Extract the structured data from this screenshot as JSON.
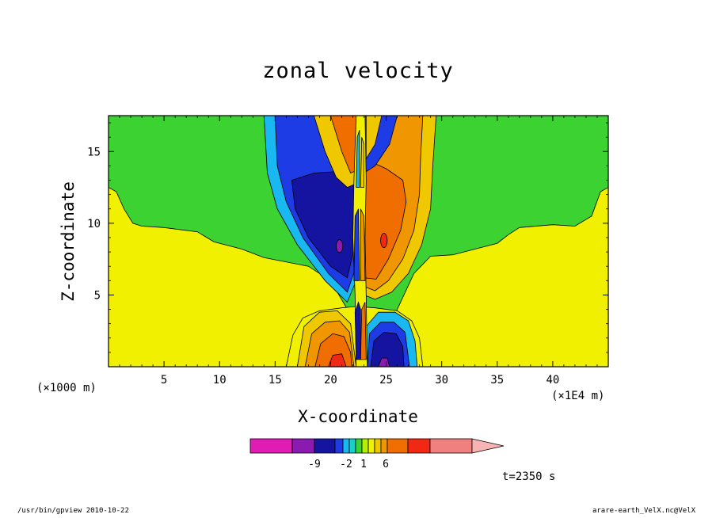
{
  "chart_data": {
    "type": "heatmap",
    "title": "zonal velocity",
    "xlabel": "X-coordinate",
    "ylabel": "Z-coordinate",
    "x_unit_left": "(×1000 m)",
    "x_unit_right": "(×1E4 m)",
    "xlim": [
      0,
      45
    ],
    "ylim": [
      0,
      17.5
    ],
    "x_ticks": [
      5,
      10,
      15,
      20,
      25,
      30,
      35,
      40
    ],
    "y_ticks": [
      5,
      10,
      15
    ],
    "colorbar": {
      "labels": [
        {
          "text": "-9",
          "value": -9
        },
        {
          "text": "-2",
          "value": -2
        },
        {
          "text": "1",
          "value": 1
        },
        {
          "text": "6",
          "value": 6
        }
      ],
      "colors": [
        "#e01cb4",
        "#8a1ab0",
        "#1414a0",
        "#1e3ce6",
        "#19b8f0",
        "#14d2c8",
        "#3cd232",
        "#b4f000",
        "#f0f000",
        "#f0c800",
        "#f09600",
        "#f06e00",
        "#f02814",
        "#f08080",
        "#f8b4b4"
      ]
    },
    "annotation": "t=2350 s",
    "colors": {
      "background_yellow": "#f0f000",
      "background_green": "#3cd232",
      "negative_core": "#1414a0",
      "positive_core": "#f06e00"
    }
  },
  "footer": {
    "left": "/usr/bin/gpview   2010-10-22",
    "right": "arare-earth_VelX.nc@VelX"
  }
}
